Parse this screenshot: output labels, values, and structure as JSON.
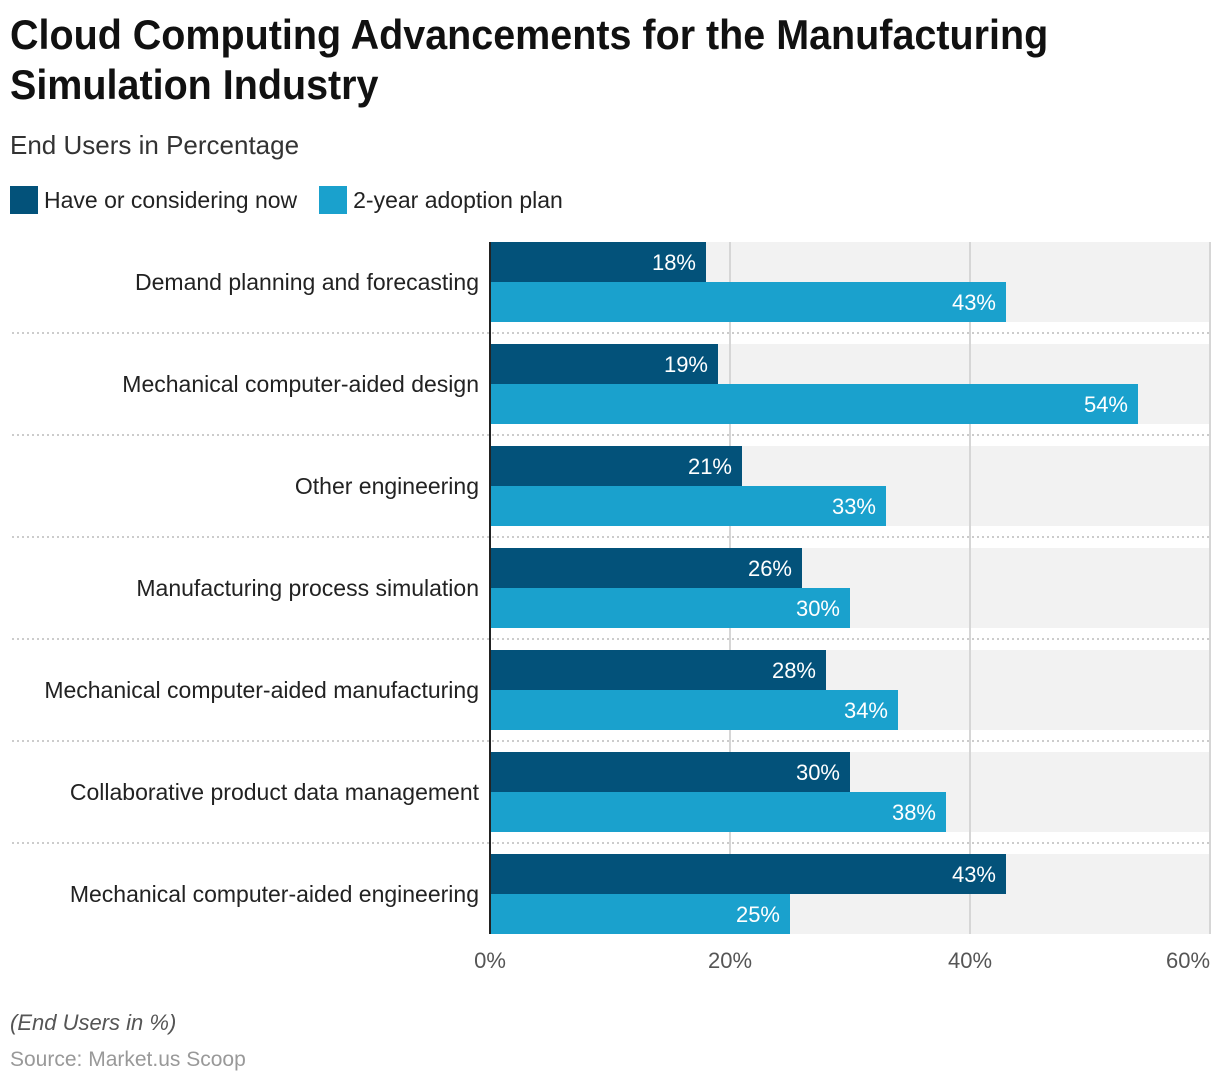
{
  "title": "Cloud Computing Advancements for the Manufacturing Simulation Industry",
  "subtitle": "End Users in Percentage",
  "note": "(End Users in %)",
  "source": "Source: Market.us Scoop",
  "colors": {
    "series1": "#03527a",
    "series2": "#1aa1cd",
    "band": "#f2f2f2",
    "grid": "#d6d6d6"
  },
  "chart_data": {
    "type": "bar",
    "orientation": "horizontal",
    "categories": [
      "Demand planning and forecasting",
      "Mechanical computer-aided design",
      "Other engineering",
      "Manufacturing process simulation",
      "Mechanical computer-aided manufacturing",
      "Collaborative product data management",
      "Mechanical computer-aided engineering"
    ],
    "series": [
      {
        "name": "Have or considering now",
        "values": [
          18,
          19,
          21,
          26,
          28,
          30,
          43
        ]
      },
      {
        "name": "2-year adoption plan",
        "values": [
          43,
          54,
          33,
          30,
          34,
          38,
          25
        ]
      }
    ],
    "xlim": [
      0,
      60
    ],
    "xticks": [
      "0%",
      "20%",
      "40%",
      "60%"
    ],
    "grid": true,
    "legend": "top-left"
  }
}
